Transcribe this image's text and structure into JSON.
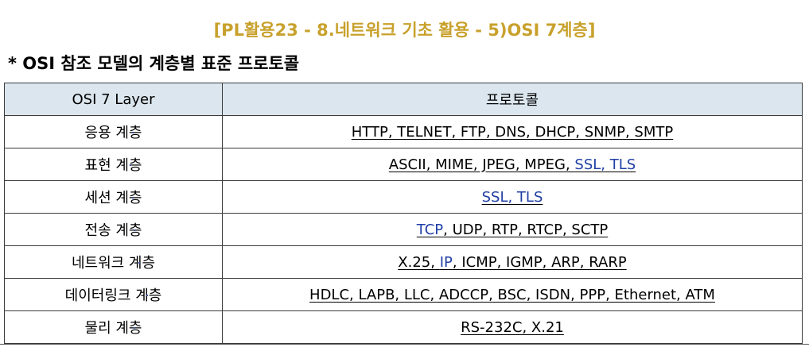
{
  "header": {
    "title": "[PL활용23 - 8.네트워크 기초 활용 - 5)OSI 7계층]"
  },
  "section": {
    "heading": "* OSI 참조 모델의 계층별 표준 프로토콜"
  },
  "table": {
    "columns": [
      "OSI 7 Layer",
      "프로토콜"
    ],
    "rows": [
      {
        "layer": "응용 계층",
        "protocols": [
          {
            "t": "HTTP, TELNET, FTP, DNS, DHCP, SNMP, SMTP",
            "c": "black"
          }
        ]
      },
      {
        "layer": "표현 계층",
        "protocols": [
          {
            "t": "ASCII, MIME, JPEG, MPEG, ",
            "c": "black"
          },
          {
            "t": "SSL, TLS",
            "c": "blue"
          }
        ]
      },
      {
        "layer": "세션 계층",
        "protocols": [
          {
            "t": "SSL, TLS",
            "c": "blue"
          }
        ]
      },
      {
        "layer": "전송 계층",
        "protocols": [
          {
            "t": "TCP",
            "c": "blue"
          },
          {
            "t": ", UDP, RTP, RTCP, SCTP",
            "c": "black"
          }
        ]
      },
      {
        "layer": "네트워크 계층",
        "protocols": [
          {
            "t": "X.25, ",
            "c": "black"
          },
          {
            "t": "IP",
            "c": "blue"
          },
          {
            "t": ", ICMP, IGMP, ARP, RARP",
            "c": "black"
          }
        ]
      },
      {
        "layer": "데이터링크 계층",
        "protocols": [
          {
            "t": "HDLC, LAPB, LLC, ADCCP, BSC, ISDN, PPP, Ethernet, ATM",
            "c": "black"
          }
        ]
      },
      {
        "layer": "물리 계층",
        "protocols": [
          {
            "t": "RS-232C, X.21",
            "c": "black"
          }
        ]
      }
    ]
  },
  "colors": {
    "title": "#c8a12c",
    "header_bg": "#dbe6ee",
    "link_blue": "#1f3fa6",
    "border": "#3a3a3a"
  }
}
